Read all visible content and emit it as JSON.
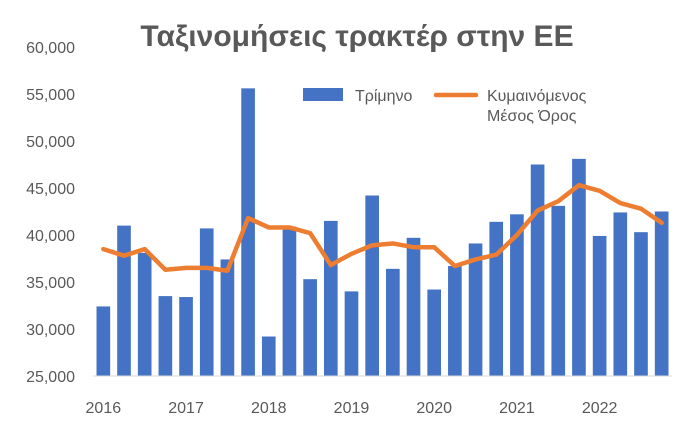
{
  "chart_data": {
    "type": "bar",
    "title": "Ταξινομήσεις τρακτέρ στην ΕΕ",
    "xlabel": "",
    "ylabel": "",
    "ylim": [
      25000,
      60000
    ],
    "yticks": [
      "25,000",
      "30,000",
      "35,000",
      "40,000",
      "45,000",
      "50,000",
      "55,000",
      "60,000"
    ],
    "ytick_values": [
      25000,
      30000,
      35000,
      40000,
      45000,
      50000,
      55000,
      60000
    ],
    "year_labels": [
      "2016",
      "2017",
      "2018",
      "2019",
      "2020",
      "2021",
      "2022"
    ],
    "grid": false,
    "legend_position": "top-right",
    "colors": {
      "bar": "#4472C4",
      "line": "#ED7D31",
      "axis": "#D9D9D9",
      "text": "#595959"
    },
    "series": [
      {
        "name": "Τρίμηνο",
        "type": "bar",
        "values": [
          32400,
          41000,
          38100,
          33500,
          33400,
          40700,
          37400,
          55600,
          29200,
          40900,
          35300,
          41500,
          34000,
          44200,
          36400,
          39700,
          34200,
          36700,
          39100,
          41400,
          42200,
          47500,
          43100,
          48100,
          39900,
          42400,
          40300,
          42500
        ]
      },
      {
        "name_lines": [
          "Κυμαινόμενος",
          "Μέσος Όρος"
        ],
        "type": "line",
        "values": [
          38500,
          37800,
          38500,
          36300,
          36500,
          36500,
          36200,
          41800,
          40800,
          40800,
          40200,
          36800,
          38000,
          38900,
          39100,
          38700,
          38700,
          36700,
          37400,
          37900,
          40000,
          42600,
          43600,
          45300,
          44700,
          43400,
          42800,
          41300
        ]
      }
    ]
  }
}
